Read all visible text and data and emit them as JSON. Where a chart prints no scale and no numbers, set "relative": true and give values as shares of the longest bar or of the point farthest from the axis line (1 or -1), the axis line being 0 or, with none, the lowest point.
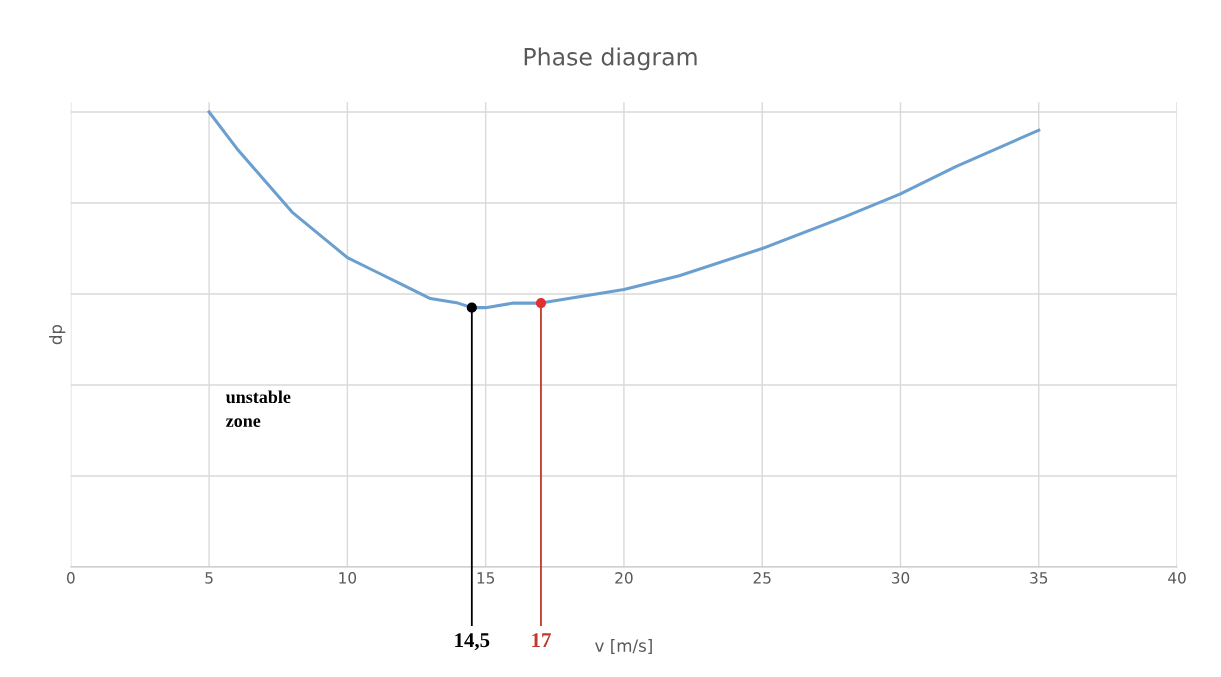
{
  "chart_data": {
    "type": "line",
    "title": "Phase diagram",
    "xlabel": "v [m/s]",
    "ylabel": "dp",
    "relative": true,
    "x": [
      5,
      6,
      7,
      8,
      9,
      10,
      11,
      12,
      13,
      14,
      14.5,
      15,
      16,
      17,
      18,
      20,
      22,
      25,
      28,
      30,
      32,
      35
    ],
    "series": [
      {
        "color": "#6a9fcf",
        "values": [
          1,
          0.92,
          0.85,
          0.78,
          0.73,
          0.68,
          0.65,
          0.62,
          0.59,
          0.58,
          0.57,
          0.57,
          0.58,
          0.58,
          0.59,
          0.61,
          0.64,
          0.7,
          0.77,
          0.82,
          0.88,
          0.96
        ]
      },
      {
        "type": "scatter",
        "marker": "circle",
        "x": [
          14.5
        ],
        "color": "#000000",
        "values": [
          0.57
        ]
      },
      {
        "type": "scatter",
        "marker": "circle",
        "x": [
          17
        ],
        "color": "#e03030",
        "values": [
          0.58
        ]
      }
    ],
    "ref_lines": [
      {
        "axis": "x",
        "value": 14.5,
        "label": "14,5",
        "color": "#000000"
      },
      {
        "axis": "x",
        "value": 17,
        "label": "17",
        "color": "#c0392b"
      }
    ],
    "annotations": [
      "unstable\nzone"
    ],
    "xlim": [
      0,
      40
    ],
    "xticks": [
      0,
      5,
      10,
      15,
      20,
      25,
      30,
      35,
      40
    ],
    "grid": true,
    "legend": false
  }
}
